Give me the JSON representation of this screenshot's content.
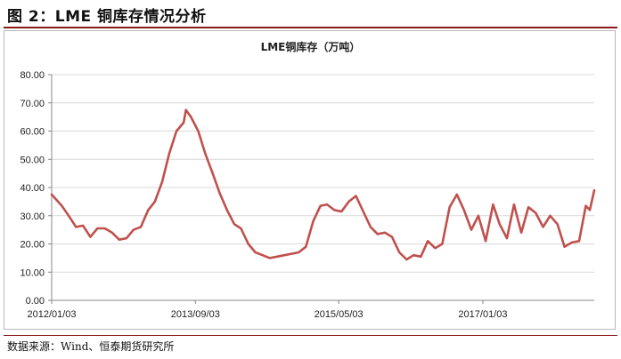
{
  "figure": {
    "title": "图 2：LME 铜库存情况分析",
    "source": "数据来源：Wind、恒泰期货研究所"
  },
  "chart_data": {
    "type": "line",
    "title": "LME铜库存（万吨）",
    "xlabel": "",
    "ylabel": "",
    "ylim": [
      0,
      80
    ],
    "yticks": [
      "0.00",
      "10.00",
      "20.00",
      "30.00",
      "40.00",
      "50.00",
      "60.00",
      "70.00",
      "80.00"
    ],
    "xticks": [
      "2012/01/03",
      "2013/09/03",
      "2015/05/03",
      "2017/01/03"
    ],
    "xlim": [
      "2012/01/03",
      "2018/04/20"
    ],
    "grid": true,
    "colors": {
      "line": "#c0504d",
      "grid": "#d9d9d9",
      "axis": "#888888"
    },
    "series": [
      {
        "name": "",
        "x": [
          "2012/01/03",
          "2012/02/15",
          "2012/03/15",
          "2012/04/15",
          "2012/05/15",
          "2012/06/15",
          "2012/07/15",
          "2012/08/15",
          "2012/09/15",
          "2012/10/15",
          "2012/11/15",
          "2012/12/15",
          "2013/01/15",
          "2013/02/15",
          "2013/03/15",
          "2013/04/15",
          "2013/05/15",
          "2013/06/15",
          "2013/07/15",
          "2013/07/25",
          "2013/08/15",
          "2013/09/15",
          "2013/10/15",
          "2013/11/15",
          "2013/12/15",
          "2014/01/15",
          "2014/02/15",
          "2014/03/15",
          "2014/04/15",
          "2014/05/15",
          "2014/06/15",
          "2014/07/15",
          "2014/08/15",
          "2014/09/15",
          "2014/10/15",
          "2014/11/15",
          "2014/12/15",
          "2015/01/15",
          "2015/02/15",
          "2015/03/15",
          "2015/04/15",
          "2015/05/15",
          "2015/06/15",
          "2015/07/15",
          "2015/08/15",
          "2015/09/15",
          "2015/10/15",
          "2015/11/15",
          "2015/12/15",
          "2016/01/15",
          "2016/02/15",
          "2016/03/15",
          "2016/04/15",
          "2016/05/15",
          "2016/06/15",
          "2016/07/15",
          "2016/08/15",
          "2016/09/15",
          "2016/10/15",
          "2016/11/15",
          "2016/12/15",
          "2017/01/15",
          "2017/02/15",
          "2017/03/15",
          "2017/04/15",
          "2017/05/15",
          "2017/06/15",
          "2017/07/15",
          "2017/08/15",
          "2017/09/15",
          "2017/10/15",
          "2017/11/15",
          "2017/12/15",
          "2018/01/15",
          "2018/02/15",
          "2018/03/15",
          "2018/04/01",
          "2018/04/20"
        ],
        "y": [
          37.5,
          33.5,
          30.0,
          26.0,
          26.5,
          22.5,
          25.5,
          25.5,
          24.0,
          21.5,
          22.0,
          25.0,
          26.0,
          32.0,
          35.0,
          42.0,
          52.0,
          60.0,
          63.0,
          67.5,
          65.0,
          60.0,
          52.0,
          45.0,
          38.0,
          32.0,
          27.0,
          25.5,
          20.0,
          17.0,
          16.0,
          15.0,
          15.5,
          16.0,
          16.5,
          17.0,
          19.0,
          28.0,
          33.5,
          34.0,
          32.0,
          31.5,
          35.0,
          37.0,
          31.5,
          26.0,
          23.5,
          24.0,
          22.5,
          17.0,
          14.5,
          16.0,
          15.5,
          21.0,
          18.5,
          20.0,
          33.0,
          37.5,
          32.0,
          25.0,
          30.0,
          21.0,
          34.0,
          27.0,
          22.0,
          34.0,
          24.0,
          33.0,
          31.0,
          26.0,
          30.0,
          27.0,
          19.0,
          20.5,
          21.0,
          33.5,
          32.0,
          39.0
        ]
      }
    ]
  }
}
